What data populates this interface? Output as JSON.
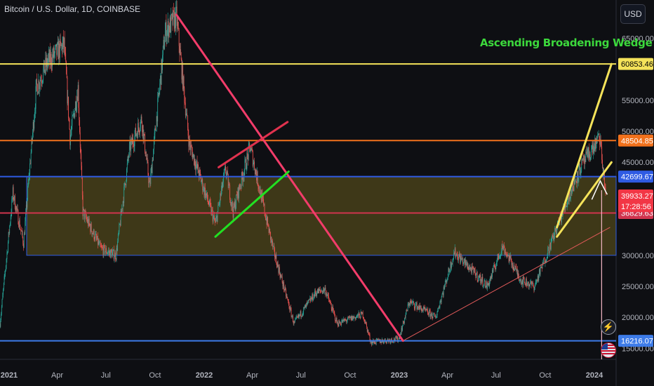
{
  "header": {
    "symbol_title": "Bitcoin / U.S. Dollar, 1D, COINBASE",
    "currency_button": "USD"
  },
  "annotation": {
    "text": "Ascending Broadening Wedge",
    "color": "#3cd83c"
  },
  "chart_data": {
    "type": "candlestick",
    "title": "Bitcoin / U.S. Dollar, 1D, COINBASE",
    "ylim": [
      13000,
      70000
    ],
    "y_ticks": [
      {
        "label": "65000.00",
        "value": 65000
      },
      {
        "label": "55000.00",
        "value": 55000
      },
      {
        "label": "50000.00",
        "value": 50000
      },
      {
        "label": "45000.00",
        "value": 45000
      },
      {
        "label": "30000.00",
        "value": 30000
      },
      {
        "label": "25000.00",
        "value": 25000
      },
      {
        "label": "20000.00",
        "value": 20000
      },
      {
        "label": "15000.00",
        "value": 15000
      }
    ],
    "x_ticks": [
      {
        "label": "2021",
        "date": "2021-01-01"
      },
      {
        "label": "Apr",
        "date": "2021-04-01"
      },
      {
        "label": "Jul",
        "date": "2021-07-01"
      },
      {
        "label": "Oct",
        "date": "2021-10-01"
      },
      {
        "label": "2022",
        "date": "2022-01-01"
      },
      {
        "label": "Apr",
        "date": "2022-04-01"
      },
      {
        "label": "Jul",
        "date": "2022-07-01"
      },
      {
        "label": "Oct",
        "date": "2022-10-01"
      },
      {
        "label": "2023",
        "date": "2023-01-01"
      },
      {
        "label": "Apr",
        "date": "2023-04-01"
      },
      {
        "label": "Jul",
        "date": "2023-07-01"
      },
      {
        "label": "Oct",
        "date": "2023-10-01"
      },
      {
        "label": "2024",
        "date": "2024-01-01"
      }
    ],
    "price_path": [
      [
        "2020-12-15",
        19000
      ],
      [
        "2021-01-08",
        40000
      ],
      [
        "2021-01-28",
        32000
      ],
      [
        "2021-02-21",
        57000
      ],
      [
        "2021-03-13",
        61000
      ],
      [
        "2021-04-14",
        64000
      ],
      [
        "2021-04-25",
        49000
      ],
      [
        "2021-05-10",
        57000
      ],
      [
        "2021-05-19",
        37000
      ],
      [
        "2021-06-22",
        31000
      ],
      [
        "2021-07-20",
        30000
      ],
      [
        "2021-08-14",
        47000
      ],
      [
        "2021-09-06",
        52000
      ],
      [
        "2021-09-21",
        41000
      ],
      [
        "2021-10-20",
        66000
      ],
      [
        "2021-11-10",
        68500
      ],
      [
        "2021-12-04",
        48000
      ],
      [
        "2022-01-22",
        35000
      ],
      [
        "2022-02-10",
        44000
      ],
      [
        "2022-02-24",
        37000
      ],
      [
        "2022-03-28",
        47500
      ],
      [
        "2022-05-10",
        31000
      ],
      [
        "2022-06-18",
        19000
      ],
      [
        "2022-07-29",
        24000
      ],
      [
        "2022-08-15",
        24500
      ],
      [
        "2022-09-07",
        19000
      ],
      [
        "2022-10-25",
        20500
      ],
      [
        "2022-11-09",
        16000
      ],
      [
        "2022-12-31",
        16500
      ],
      [
        "2023-01-20",
        22500
      ],
      [
        "2023-03-10",
        20000
      ],
      [
        "2023-04-14",
        30500
      ],
      [
        "2023-06-15",
        25000
      ],
      [
        "2023-07-13",
        31500
      ],
      [
        "2023-08-17",
        26000
      ],
      [
        "2023-09-11",
        25000
      ],
      [
        "2023-10-23",
        34500
      ],
      [
        "2023-12-05",
        44000
      ],
      [
        "2024-01-11",
        49000
      ],
      [
        "2024-01-22",
        39933.27
      ]
    ],
    "horizontal_levels": [
      {
        "label": "60853.46",
        "value": 60853.46,
        "color": "#f5e35a",
        "text_color": "#000000"
      },
      {
        "label": "48504.85",
        "value": 48504.85,
        "color": "#f2711c",
        "text_color": "#ffffff"
      },
      {
        "label": "42699.67",
        "value": 42699.67,
        "color": "#2f5be3",
        "text_color": "#ffffff"
      },
      {
        "label": "36829.63",
        "value": 36829.63,
        "color": "#d0344e",
        "text_color": "#ffffff"
      },
      {
        "label": "16216.07",
        "value": 16216.07,
        "color": "#3d7be8",
        "text_color": "#ffffff"
      }
    ],
    "current_price": {
      "label": "39933.27",
      "countdown": "17:28:56",
      "value": 39933.27,
      "color": "#f23645"
    },
    "zone": {
      "from_date": "2020-12-15",
      "low": 30000,
      "high": 42699.67,
      "fill": "#7a6a1e"
    },
    "trendlines": [
      {
        "name": "descending-trendline",
        "color": "#f23c6a",
        "points": [
          [
            "2021-11-10",
            68800
          ],
          [
            "2023-01-08",
            16216
          ]
        ]
      },
      {
        "name": "support-trendline",
        "color": "#e25a5a",
        "points": [
          [
            "2023-01-08",
            16216
          ],
          [
            "2024-01-30",
            34500
          ]
        ]
      },
      {
        "name": "green-channel-line",
        "color": "#22e022",
        "points": [
          [
            "2022-01-22",
            33000
          ],
          [
            "2022-06-08",
            43500
          ]
        ]
      },
      {
        "name": "red-channel-line",
        "color": "#e0324e",
        "points": [
          [
            "2022-01-28",
            44200
          ],
          [
            "2022-06-06",
            51500
          ]
        ]
      },
      {
        "name": "wedge-upper-line",
        "color": "#f5e35a",
        "points": [
          [
            "2023-10-23",
            34500
          ],
          [
            "2024-02-02",
            60853.46
          ]
        ]
      },
      {
        "name": "wedge-lower-line",
        "color": "#f5e35a",
        "points": [
          [
            "2023-10-23",
            33000
          ],
          [
            "2024-02-02",
            45000
          ]
        ]
      }
    ]
  }
}
